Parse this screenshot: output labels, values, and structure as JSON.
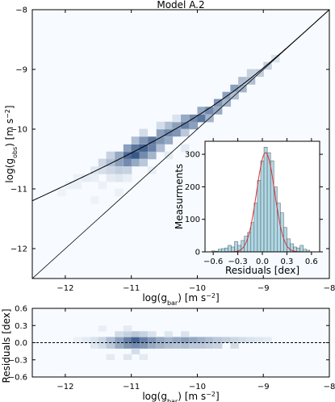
{
  "chart_data": [
    {
      "type": "heatmap",
      "title": "Model A.2",
      "xlabel": "log(g_bar) [m s^-2]",
      "ylabel": "log(g_obs) [m s^-2]",
      "xlim": [
        -12.5,
        -8
      ],
      "ylim": [
        -12.5,
        -8
      ],
      "xticks": [
        -12,
        -11,
        -10,
        -9,
        -8
      ],
      "xtick_labels": [
        "−12",
        "−11",
        "−10",
        "−9",
        "−8"
      ],
      "yticks": [
        -12,
        -11,
        -10,
        -9,
        -8
      ],
      "ytick_labels": [
        "−12",
        "−11",
        "−10",
        "−9",
        "−8"
      ],
      "colormap": "Blues",
      "cell_size": 0.125,
      "cells": [
        [
          -12.0,
          -11.0,
          0.05
        ],
        [
          -11.88,
          -10.88,
          0.05
        ],
        [
          -11.75,
          -10.88,
          0.08
        ],
        [
          -11.62,
          -10.75,
          0.1
        ],
        [
          -11.5,
          -10.75,
          0.14
        ],
        [
          -11.5,
          -10.62,
          0.18
        ],
        [
          -11.38,
          -10.62,
          0.3
        ],
        [
          -11.38,
          -10.75,
          0.18
        ],
        [
          -11.38,
          -10.5,
          0.2
        ],
        [
          -11.25,
          -10.62,
          0.45
        ],
        [
          -11.25,
          -10.5,
          0.4
        ],
        [
          -11.25,
          -10.75,
          0.22
        ],
        [
          -11.12,
          -10.5,
          0.7
        ],
        [
          -11.12,
          -10.62,
          0.55
        ],
        [
          -11.12,
          -10.38,
          0.45
        ],
        [
          -11.12,
          -10.75,
          0.2
        ],
        [
          -11.0,
          -10.5,
          0.8
        ],
        [
          -11.0,
          -10.38,
          0.65
        ],
        [
          -11.0,
          -10.62,
          0.4
        ],
        [
          -11.0,
          -10.25,
          0.3
        ],
        [
          -10.88,
          -10.38,
          0.75
        ],
        [
          -10.88,
          -10.5,
          0.55
        ],
        [
          -10.88,
          -10.25,
          0.5
        ],
        [
          -10.88,
          -10.62,
          0.25
        ],
        [
          -10.75,
          -10.38,
          0.6
        ],
        [
          -10.75,
          -10.25,
          0.65
        ],
        [
          -10.75,
          -10.5,
          0.35
        ],
        [
          -10.62,
          -10.25,
          0.5
        ],
        [
          -10.62,
          -10.12,
          0.45
        ],
        [
          -10.62,
          -10.38,
          0.3
        ],
        [
          -10.5,
          -10.12,
          0.55
        ],
        [
          -10.5,
          -10.25,
          0.4
        ],
        [
          -10.5,
          -10.0,
          0.3
        ],
        [
          -10.38,
          -10.12,
          0.5
        ],
        [
          -10.38,
          -10.0,
          0.45
        ],
        [
          -10.25,
          -10.0,
          0.6
        ],
        [
          -10.25,
          -9.88,
          0.4
        ],
        [
          -10.25,
          -10.12,
          0.25
        ],
        [
          -10.12,
          -9.88,
          0.55
        ],
        [
          -10.12,
          -10.0,
          0.45
        ],
        [
          -10.0,
          -9.88,
          0.65
        ],
        [
          -10.0,
          -9.75,
          0.4
        ],
        [
          -9.88,
          -9.75,
          0.55
        ],
        [
          -9.88,
          -9.88,
          0.35
        ],
        [
          -9.75,
          -9.62,
          0.5
        ],
        [
          -9.75,
          -9.75,
          0.4
        ],
        [
          -9.62,
          -9.5,
          0.45
        ],
        [
          -9.62,
          -9.62,
          0.35
        ],
        [
          -9.5,
          -9.38,
          0.45
        ],
        [
          -9.5,
          -9.5,
          0.3
        ],
        [
          -9.38,
          -9.38,
          0.35
        ],
        [
          -9.38,
          -9.25,
          0.3
        ],
        [
          -9.25,
          -9.25,
          0.3
        ],
        [
          -9.25,
          -9.12,
          0.2
        ],
        [
          -9.12,
          -9.12,
          0.22
        ],
        [
          -9.0,
          -9.0,
          0.2
        ],
        [
          -8.88,
          -8.88,
          0.12
        ],
        [
          -11.62,
          -10.88,
          0.06
        ],
        [
          -11.5,
          -11.0,
          0.05
        ],
        [
          -11.38,
          -10.88,
          0.08
        ],
        [
          -11.25,
          -10.88,
          0.1
        ],
        [
          -11.12,
          -10.88,
          0.06
        ],
        [
          -11.62,
          -11.25,
          0.04
        ],
        [
          -11.25,
          -11.12,
          0.05
        ],
        [
          -10.75,
          -10.75,
          0.06
        ],
        [
          -10.5,
          -10.5,
          0.08
        ],
        [
          -10.25,
          -10.38,
          0.08
        ],
        [
          -12.12,
          -11.12,
          0.04
        ],
        [
          -11.88,
          -11.0,
          0.05
        ],
        [
          -10.62,
          -10.0,
          0.15
        ],
        [
          -10.38,
          -9.88,
          0.12
        ],
        [
          -10.88,
          -10.12,
          0.15
        ]
      ],
      "curves": [
        {
          "kind": "rar-model",
          "color": "#000000"
        },
        {
          "kind": "one-to-one",
          "color": "#000000"
        }
      ]
    },
    {
      "type": "bar",
      "xlabel": "Residuals [dex]",
      "ylabel": "Measurments",
      "xlim": [
        -0.7,
        0.7
      ],
      "ylim": [
        0,
        340
      ],
      "xticks": [
        -0.6,
        -0.3,
        0.0,
        0.3,
        0.6
      ],
      "xtick_labels": [
        "−0.6",
        "−0.3",
        "0.0",
        "0.3",
        "0.6"
      ],
      "yticks": [
        0,
        100,
        200,
        300
      ],
      "ytick_labels": [
        "0",
        "100",
        "200",
        "300"
      ],
      "bin_width": 0.04,
      "bins": [
        -0.62,
        -0.58,
        -0.54,
        -0.5,
        -0.46,
        -0.42,
        -0.38,
        -0.34,
        -0.3,
        -0.26,
        -0.22,
        -0.18,
        -0.14,
        -0.1,
        -0.06,
        -0.02,
        0.02,
        0.06,
        0.1,
        0.14,
        0.18,
        0.22,
        0.26,
        0.3,
        0.34,
        0.38,
        0.42,
        0.46,
        0.5,
        0.54
      ],
      "values": [
        3,
        2,
        8,
        10,
        12,
        20,
        15,
        32,
        20,
        35,
        48,
        60,
        90,
        150,
        220,
        280,
        322,
        305,
        280,
        200,
        150,
        120,
        75,
        40,
        25,
        15,
        12,
        20,
        8,
        5
      ],
      "bar_color": "#add8e6",
      "fit": {
        "type": "gaussian",
        "mean": 0.04,
        "sigma": 0.11,
        "amplitude": 305,
        "color": "#e03030"
      }
    },
    {
      "type": "heatmap",
      "xlabel": "log(g_bar) [m s^-2]",
      "ylabel": "Residuals [dex]",
      "xlim": [
        -12.5,
        -8
      ],
      "ylim": [
        -0.6,
        0.6
      ],
      "xticks": [
        -12,
        -11,
        -10,
        -9,
        -8
      ],
      "xtick_labels": [
        "−12",
        "−11",
        "−10",
        "−9",
        "−8"
      ],
      "yticks": [
        -0.6,
        -0.3,
        0.0,
        0.3,
        0.6
      ],
      "ytick_labels": [
        "−0.6",
        "−0.3",
        "0.0",
        "0.3",
        "0.6"
      ],
      "colormap": "Blues",
      "cell_size_x": 0.125,
      "cell_size_y": 0.1,
      "cells": [
        [
          -11.88,
          0.05,
          0.05
        ],
        [
          -11.75,
          0.05,
          0.08
        ],
        [
          -11.62,
          0.05,
          0.12
        ],
        [
          -11.62,
          -0.05,
          0.1
        ],
        [
          -11.5,
          0.05,
          0.18
        ],
        [
          -11.5,
          -0.05,
          0.15
        ],
        [
          -11.38,
          0.05,
          0.3
        ],
        [
          -11.38,
          -0.05,
          0.25
        ],
        [
          -11.25,
          0.05,
          0.45
        ],
        [
          -11.25,
          -0.05,
          0.4
        ],
        [
          -11.25,
          0.15,
          0.15
        ],
        [
          -11.12,
          0.05,
          0.6
        ],
        [
          -11.12,
          -0.05,
          0.5
        ],
        [
          -11.12,
          0.15,
          0.2
        ],
        [
          -11.0,
          0.05,
          0.75
        ],
        [
          -11.0,
          -0.05,
          0.55
        ],
        [
          -11.0,
          0.15,
          0.25
        ],
        [
          -11.0,
          -0.15,
          0.15
        ],
        [
          -10.88,
          0.05,
          0.6
        ],
        [
          -10.88,
          -0.05,
          0.5
        ],
        [
          -10.88,
          0.15,
          0.2
        ],
        [
          -10.75,
          0.05,
          0.5
        ],
        [
          -10.75,
          -0.05,
          0.4
        ],
        [
          -10.62,
          0.05,
          0.4
        ],
        [
          -10.62,
          -0.05,
          0.35
        ],
        [
          -10.5,
          0.05,
          0.35
        ],
        [
          -10.5,
          -0.05,
          0.3
        ],
        [
          -10.38,
          0.05,
          0.4
        ],
        [
          -10.38,
          -0.05,
          0.28
        ],
        [
          -10.25,
          0.05,
          0.45
        ],
        [
          -10.25,
          -0.05,
          0.3
        ],
        [
          -10.12,
          0.05,
          0.4
        ],
        [
          -10.12,
          -0.05,
          0.25
        ],
        [
          -10.0,
          0.05,
          0.35
        ],
        [
          -10.0,
          -0.05,
          0.25
        ],
        [
          -9.88,
          0.05,
          0.3
        ],
        [
          -9.88,
          -0.05,
          0.22
        ],
        [
          -9.75,
          0.05,
          0.25
        ],
        [
          -9.75,
          -0.05,
          0.2
        ],
        [
          -9.62,
          0.05,
          0.22
        ],
        [
          -9.5,
          0.05,
          0.18
        ],
        [
          -9.5,
          -0.05,
          0.15
        ],
        [
          -9.38,
          0.05,
          0.15
        ],
        [
          -9.25,
          0.05,
          0.12
        ],
        [
          -9.12,
          0.05,
          0.1
        ],
        [
          -9.0,
          0.05,
          0.08
        ],
        [
          -11.38,
          -0.25,
          0.08
        ],
        [
          -11.12,
          -0.25,
          0.1
        ],
        [
          -10.88,
          -0.25,
          0.08
        ],
        [
          -11.5,
          0.25,
          0.06
        ],
        [
          -11.12,
          0.25,
          0.08
        ],
        [
          -10.75,
          0.15,
          0.12
        ],
        [
          -10.5,
          0.15,
          0.1
        ],
        [
          -10.25,
          0.15,
          0.12
        ]
      ],
      "reference_line": {
        "y": 0,
        "style": "dashed",
        "color": "#000000"
      }
    }
  ]
}
